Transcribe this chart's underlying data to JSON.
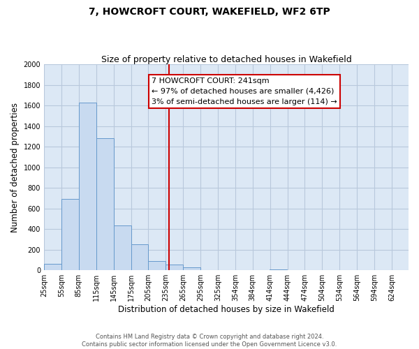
{
  "title": "7, HOWCROFT COURT, WAKEFIELD, WF2 6TP",
  "subtitle": "Size of property relative to detached houses in Wakefield",
  "xlabel": "Distribution of detached houses by size in Wakefield",
  "ylabel": "Number of detached properties",
  "bar_color": "#c8daf0",
  "bar_edge_color": "#6699cc",
  "background_color": "#dce8f5",
  "vline_x": 241,
  "vline_color": "#cc0000",
  "annotation_line1": "7 HOWCROFT COURT: 241sqm",
  "annotation_line2": "← 97% of detached houses are smaller (4,426)",
  "annotation_line3": "3% of semi-detached houses are larger (114) →",
  "annotation_box_color": "#ffffff",
  "annotation_box_edge": "#cc0000",
  "ylim": [
    0,
    2000
  ],
  "yticks": [
    0,
    200,
    400,
    600,
    800,
    1000,
    1200,
    1400,
    1600,
    1800,
    2000
  ],
  "bins_left": [
    25,
    55,
    85,
    115,
    145,
    175,
    205,
    235,
    265,
    295,
    325,
    354,
    384,
    414,
    444,
    474,
    504,
    534,
    564,
    594
  ],
  "bin_width": 30,
  "bar_heights": [
    65,
    695,
    1630,
    1280,
    435,
    252,
    88,
    55,
    30,
    0,
    0,
    0,
    0,
    10,
    0,
    0,
    0,
    0,
    0,
    0
  ],
  "xtick_labels": [
    "25sqm",
    "55sqm",
    "85sqm",
    "115sqm",
    "145sqm",
    "175sqm",
    "205sqm",
    "235sqm",
    "265sqm",
    "295sqm",
    "325sqm",
    "354sqm",
    "384sqm",
    "414sqm",
    "444sqm",
    "474sqm",
    "504sqm",
    "534sqm",
    "564sqm",
    "594sqm",
    "624sqm"
  ],
  "footer_text": "Contains HM Land Registry data © Crown copyright and database right 2024.\nContains public sector information licensed under the Open Government Licence v3.0.",
  "grid_color": "#b8c8dc",
  "title_fontsize": 10,
  "subtitle_fontsize": 9,
  "label_fontsize": 8.5,
  "tick_fontsize": 7,
  "annotation_fontsize": 8,
  "footer_fontsize": 6
}
